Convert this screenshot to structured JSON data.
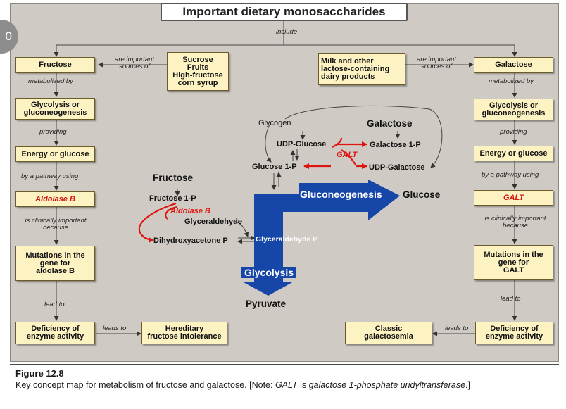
{
  "title": "Important dietary monosaccharides",
  "badge": "0",
  "labels": {
    "include": "include",
    "are_important_sources_of_left": "are important sources of",
    "are_important_sources_of_right": "are important sources of",
    "metabolized_by_left": "metabolized by",
    "metabolized_by_right": "metabolized by",
    "providing_left": "providing",
    "providing_right": "providing",
    "pathway_left": "by a pathway using",
    "pathway_right": "by a pathway using",
    "clinical_left": "is clinically important because",
    "clinical_right": "is clinically important because",
    "lead_to_left": "lead to",
    "lead_to_right": "lead to",
    "leads_to_left": "leads to",
    "leads_to_right": "leads to"
  },
  "left_chain": {
    "fructose": "Fructose",
    "sources": "Sucrose\nFruits\nHigh-fructose\ncorn syrup",
    "glycolysis": "Glycolysis or\ngluconeogenesis",
    "energy": "Energy or glucose",
    "enzyme": "Aldolase B",
    "mutations": "Mutations in the\ngene for\naldolase B",
    "deficiency": "Deficiency of\nenzyme activity",
    "disease": "Hereditary\nfructose intolerance"
  },
  "right_chain": {
    "galactose": "Galactose",
    "sources": "Milk and other\nlactose-containing\ndairy products",
    "glycolysis": "Glycolysis or\ngluconeogenesis",
    "energy": "Energy or glucose",
    "enzyme": "GALT",
    "mutations": "Mutations in the\ngene for\nGALT",
    "deficiency": "Deficiency of\nenzyme activity",
    "disease": "Classic\ngalactosemia"
  },
  "pathway": {
    "glycogen": "Glycogen",
    "galactose": "Galactose",
    "udp_glucose": "UDP-Glucose",
    "galactose_1p": "Galactose 1-P",
    "galt": "GALT",
    "glucose_1p": "Glucose 1-P",
    "udp_galactose": "UDP-Galactose",
    "fructose": "Fructose",
    "fructose_1p": "Fructose 1-P",
    "aldolase_b": "Aldolase B",
    "glyceraldehyde": "Glyceraldehyde",
    "dhap": "Dihydroxyacetone P",
    "glyceraldehyde_p": "Glyceraldehyde P",
    "gluconeogenesis": "Gluconeogenesis",
    "glucose": "Glucose",
    "glycolysis": "Glycolysis",
    "pyruvate": "Pyruvate"
  },
  "colors": {
    "background": "#cfcbc4",
    "box_fill": "#fdf2c2",
    "pathway_blue": "#1546a8",
    "enzyme_red": "#e0140f"
  },
  "figure": {
    "label": "Figure 12.8",
    "caption_prefix": "Key concept map for metabolism of fructose and galactose. [Note: ",
    "caption_galt": "GALT",
    "caption_is": " is ",
    "caption_expansion": "galactose 1-phosphate uridyltransferase",
    "caption_suffix": ".]"
  }
}
